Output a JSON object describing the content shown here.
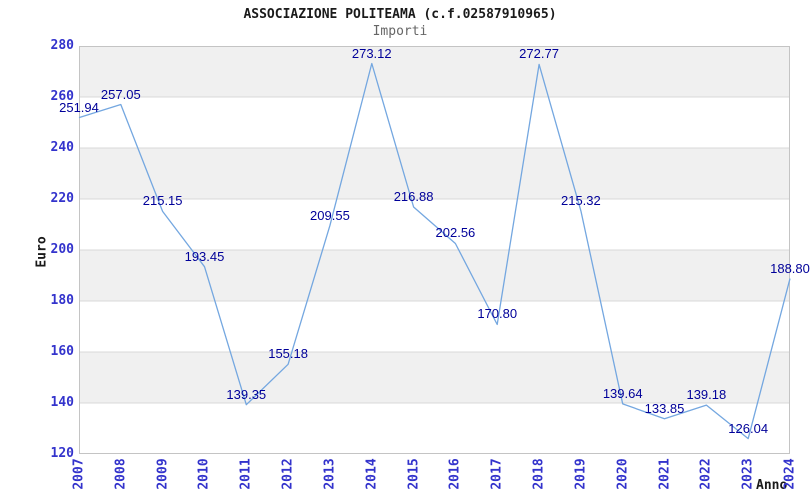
{
  "header": {
    "title": "ASSOCIAZIONE POLITEAMA (c.f.02587910965)",
    "subtitle": "Importi"
  },
  "chart_data": {
    "type": "line",
    "title": "ASSOCIAZIONE POLITEAMA (c.f.02587910965)",
    "subtitle": "Importi",
    "xlabel": "Anno",
    "ylabel": "Euro",
    "x": [
      2007,
      2008,
      2009,
      2010,
      2011,
      2012,
      2013,
      2014,
      2015,
      2016,
      2017,
      2018,
      2019,
      2020,
      2021,
      2022,
      2023,
      2024
    ],
    "values": [
      251.94,
      257.05,
      215.15,
      193.45,
      139.35,
      155.18,
      209.55,
      273.12,
      216.88,
      202.56,
      170.8,
      272.77,
      215.32,
      139.64,
      133.85,
      139.18,
      126.04,
      188.8
    ],
    "value_labels": [
      "251.94",
      "257.05",
      "215.15",
      "193.45",
      "139.35",
      "155.18",
      "209.55",
      "273.12",
      "216.88",
      "202.56",
      "170.80",
      "272.77",
      "215.32",
      "139.64",
      "133.85",
      "139.18",
      "126.04",
      "188.80"
    ],
    "ylim": [
      120,
      280
    ],
    "ytick_step": 20,
    "grid": "horizontal-gridlines-with-alternating-bands",
    "legend": "none",
    "colors": {
      "line": "#74a7e0",
      "value_label": "#000099",
      "tick_label": "#3333cc",
      "band": "#f0f0f0",
      "gridline": "#d8d8d8",
      "plot_border": "#c4c4c4",
      "title": "#1a1a1a",
      "subtitle": "#666666"
    }
  }
}
